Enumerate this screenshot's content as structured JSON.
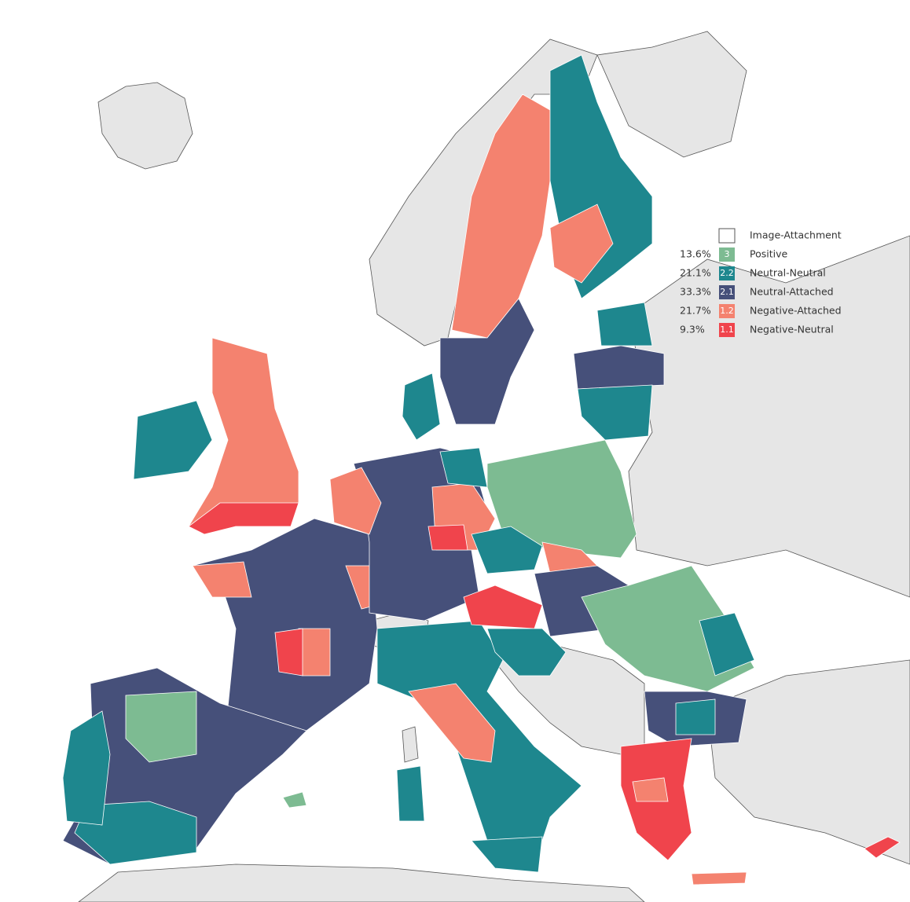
{
  "legend": {
    "items": [
      {
        "label": "Image-Attachment",
        "color": "#ffffff"
      },
      {
        "share": "13.6%",
        "code": "3",
        "label": "Positive",
        "color": "#7dbb92"
      },
      {
        "share": "21.1%",
        "code": "2.2",
        "label": "Neutral-Neutral",
        "color": "#1e878e"
      },
      {
        "share": "33.3%",
        "code": "2.1",
        "label": "Neutral-Attached",
        "color": "#46507a"
      },
      {
        "share": "21.7%",
        "code": "1.2",
        "label": "Negative-Attached",
        "color": "#f4826f"
      },
      {
        "share": "9.3%",
        "code": "1.1",
        "label": "Negative-Neutral",
        "color": "#f0444c"
      }
    ]
  }
}
